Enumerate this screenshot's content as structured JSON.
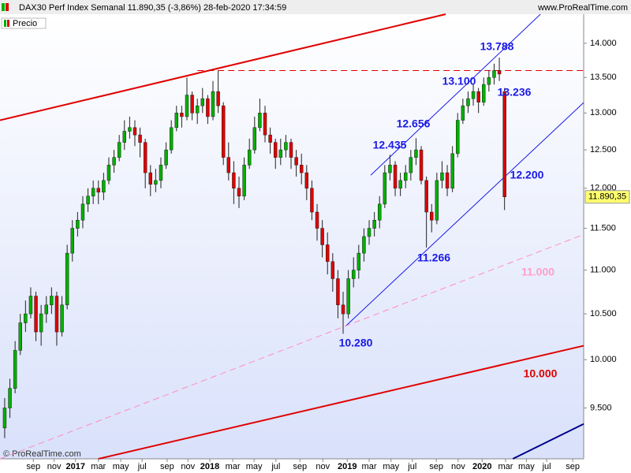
{
  "chart_data": {
    "type": "candlestick",
    "title": "DAX30 Perf Index Semanal 11.890,35 (-3,86%) 28-feb-2020 17:34:59",
    "legend": "Precio",
    "watermark": "www.ProRealTime.com",
    "copyright": "© ProRealTime.com",
    "last_label": "11.890,35",
    "log_scale": true,
    "up_color": "#00b000",
    "down_color": "#e00000",
    "ylim": [
      9000,
      14440
    ],
    "yticks": [
      {
        "value": 9500,
        "label": "9.500"
      },
      {
        "value": 10000,
        "label": "10.000"
      },
      {
        "value": 10500,
        "label": "10.500"
      },
      {
        "value": 11000,
        "label": "11.000"
      },
      {
        "value": 11500,
        "label": "11.500"
      },
      {
        "value": 12000,
        "label": "12.000"
      },
      {
        "value": 12500,
        "label": "12.500"
      },
      {
        "value": 13000,
        "label": "13.000"
      },
      {
        "value": 13500,
        "label": "13.500"
      },
      {
        "value": 14000,
        "label": "14.000"
      }
    ],
    "xlim": [
      -0.9,
      111.2
    ],
    "xticks": [
      {
        "value": 5.5,
        "label": "sep"
      },
      {
        "value": 9.5,
        "label": "nov"
      },
      {
        "value": 13.6,
        "label": "2017"
      },
      {
        "value": 18,
        "label": "mar"
      },
      {
        "value": 22.3,
        "label": "may"
      },
      {
        "value": 26.4,
        "label": "jul"
      },
      {
        "value": 31.2,
        "label": "sep"
      },
      {
        "value": 35.2,
        "label": "nov"
      },
      {
        "value": 39.4,
        "label": "2018"
      },
      {
        "value": 43.8,
        "label": "mar"
      },
      {
        "value": 47.9,
        "label": "may"
      },
      {
        "value": 52.1,
        "label": "jul"
      },
      {
        "value": 56.7,
        "label": "sep"
      },
      {
        "value": 61.1,
        "label": "nov"
      },
      {
        "value": 65.8,
        "label": "2019"
      },
      {
        "value": 70,
        "label": "mar"
      },
      {
        "value": 74.2,
        "label": "may"
      },
      {
        "value": 78.3,
        "label": "jul"
      },
      {
        "value": 82.9,
        "label": "sep"
      },
      {
        "value": 87.1,
        "label": "nov"
      },
      {
        "value": 91.7,
        "label": "2020"
      },
      {
        "value": 96.2,
        "label": "mar"
      },
      {
        "value": 100.2,
        "label": "may"
      },
      {
        "value": 104.1,
        "label": "jul"
      },
      {
        "value": 109.1,
        "label": "sep"
      }
    ],
    "candles": [
      [
        9300,
        9600,
        9200,
        9500
      ],
      [
        9500,
        9800,
        9400,
        9700
      ],
      [
        9700,
        10200,
        9650,
        10100
      ],
      [
        10100,
        10500,
        10050,
        10400
      ],
      [
        10400,
        10650,
        10300,
        10500
      ],
      [
        10500,
        10800,
        10450,
        10700
      ],
      [
        10700,
        10750,
        10200,
        10300
      ],
      [
        10300,
        10600,
        10150,
        10500
      ],
      [
        10500,
        10700,
        10400,
        10600
      ],
      [
        10600,
        10800,
        10500,
        10700
      ],
      [
        10700,
        10750,
        10150,
        10300
      ],
      [
        10300,
        10700,
        10250,
        10600
      ],
      [
        10600,
        11300,
        10550,
        11200
      ],
      [
        11200,
        11600,
        11100,
        11500
      ],
      [
        11500,
        11700,
        11400,
        11600
      ],
      [
        11600,
        11900,
        11500,
        11800
      ],
      [
        11800,
        12000,
        11700,
        11900
      ],
      [
        11900,
        12100,
        11800,
        12000
      ],
      [
        12000,
        12100,
        11800,
        11950
      ],
      [
        11950,
        12200,
        11850,
        12100
      ],
      [
        12100,
        12400,
        12050,
        12300
      ],
      [
        12300,
        12500,
        12200,
        12400
      ],
      [
        12400,
        12700,
        12350,
        12600
      ],
      [
        12600,
        12900,
        12500,
        12750
      ],
      [
        12750,
        12950,
        12650,
        12800
      ],
      [
        12800,
        12900,
        12550,
        12700
      ],
      [
        12700,
        12800,
        12400,
        12600
      ],
      [
        12600,
        12650,
        12000,
        12200
      ],
      [
        12200,
        12300,
        11900,
        12050
      ],
      [
        12050,
        12250,
        11950,
        12100
      ],
      [
        12100,
        12400,
        12000,
        12300
      ],
      [
        12300,
        12600,
        12250,
        12500
      ],
      [
        12500,
        12900,
        12450,
        12800
      ],
      [
        12800,
        13100,
        12750,
        13000
      ],
      [
        13000,
        13100,
        12800,
        12950
      ],
      [
        12950,
        13500,
        12900,
        13250
      ],
      [
        13250,
        13300,
        12900,
        13000
      ],
      [
        13000,
        13200,
        12850,
        13100
      ],
      [
        13100,
        13350,
        13000,
        13200
      ],
      [
        13200,
        13250,
        12850,
        12950
      ],
      [
        12950,
        13450,
        12900,
        13300
      ],
      [
        13300,
        13600,
        13000,
        13100
      ],
      [
        13100,
        13150,
        12300,
        12400
      ],
      [
        12400,
        12600,
        12100,
        12200
      ],
      [
        12200,
        12350,
        11800,
        12000
      ],
      [
        12000,
        12150,
        11750,
        11900
      ],
      [
        11900,
        12400,
        11850,
        12300
      ],
      [
        12300,
        12650,
        12250,
        12500
      ],
      [
        12500,
        12950,
        12450,
        12800
      ],
      [
        12800,
        13200,
        12750,
        13000
      ],
      [
        13000,
        13100,
        12600,
        12700
      ],
      [
        12700,
        12800,
        12450,
        12600
      ],
      [
        12600,
        12650,
        12250,
        12400
      ],
      [
        12400,
        12650,
        12300,
        12500
      ],
      [
        12500,
        12700,
        12400,
        12600
      ],
      [
        12600,
        12650,
        12250,
        12400
      ],
      [
        12400,
        12500,
        12150,
        12300
      ],
      [
        12300,
        12450,
        12050,
        12200
      ],
      [
        12200,
        12300,
        11850,
        12000
      ],
      [
        12000,
        12100,
        11600,
        11700
      ],
      [
        11700,
        11800,
        11350,
        11500
      ],
      [
        11500,
        11600,
        11150,
        11300
      ],
      [
        11300,
        11450,
        10950,
        11100
      ],
      [
        11100,
        11200,
        10750,
        10900
      ],
      [
        10900,
        11000,
        10450,
        10600
      ],
      [
        10600,
        10750,
        10280,
        10500
      ],
      [
        10500,
        11000,
        10450,
        10900
      ],
      [
        10900,
        11150,
        10800,
        11000
      ],
      [
        11000,
        11300,
        10900,
        11200
      ],
      [
        11200,
        11500,
        11100,
        11400
      ],
      [
        11400,
        11600,
        11300,
        11500
      ],
      [
        11500,
        11700,
        11400,
        11600
      ],
      [
        11600,
        11900,
        11500,
        11800
      ],
      [
        11800,
        12300,
        11750,
        12200
      ],
      [
        12200,
        12435,
        12100,
        12300
      ],
      [
        12300,
        12350,
        11900,
        12000
      ],
      [
        12000,
        12200,
        11900,
        12100
      ],
      [
        12100,
        12300,
        12000,
        12200
      ],
      [
        12200,
        12500,
        12100,
        12400
      ],
      [
        12400,
        12656,
        12300,
        12500
      ],
      [
        12500,
        12550,
        12050,
        12100
      ],
      [
        12100,
        12150,
        11266,
        11700
      ],
      [
        11700,
        11800,
        11450,
        11600
      ],
      [
        11600,
        12200,
        11550,
        12100
      ],
      [
        12100,
        12350,
        12000,
        12200
      ],
      [
        12200,
        12300,
        11900,
        12000
      ],
      [
        12000,
        12550,
        11950,
        12450
      ],
      [
        12450,
        13000,
        12400,
        12900
      ],
      [
        12900,
        13200,
        12850,
        13100
      ],
      [
        13100,
        13300,
        13000,
        13200
      ],
      [
        13200,
        13400,
        13100,
        13300
      ],
      [
        13300,
        13350,
        13000,
        13150
      ],
      [
        13150,
        13500,
        13100,
        13400
      ],
      [
        13400,
        13600,
        13300,
        13500
      ],
      [
        13500,
        13700,
        13400,
        13600
      ],
      [
        13600,
        13788,
        13450,
        13550
      ],
      [
        13300,
        13350,
        11725,
        11890.35
      ]
    ],
    "lines": [
      {
        "from": [
          -0.9,
          12900
        ],
        "to": [
          84.7,
          14440
        ],
        "color": "#e00000",
        "width": 2
      },
      {
        "from": [
          18,
          9000
        ],
        "to": [
          111.2,
          10150
        ],
        "color": "#e00000",
        "width": 2
      },
      {
        "from": [
          37,
          13600
        ],
        "to": [
          111.2,
          13600
        ],
        "color": "#e00000",
        "width": 1,
        "dashed": true
      },
      {
        "from": [
          70.3,
          12168
        ],
        "to": [
          102.9,
          14440
        ],
        "color": "#1a1ae6",
        "width": 1
      },
      {
        "from": [
          65.5,
          10364
        ],
        "to": [
          111.2,
          13145
        ],
        "color": "#1a1ae6",
        "width": 1
      },
      {
        "from": [
          -0.9,
          9000
        ],
        "to": [
          111.2,
          11424
        ],
        "color": "#ff8cc0",
        "width": 1,
        "dashed": true
      },
      {
        "from": [
          97.6,
          9000
        ],
        "to": [
          111.2,
          9340
        ],
        "color": "#00008b",
        "width": 2
      }
    ],
    "annotations": [
      {
        "text": "13.788",
        "color": "#1a1ae6"
      },
      {
        "text": "13.100",
        "color": "#1a1ae6"
      },
      {
        "text": "13.236",
        "color": "#1a1ae6"
      },
      {
        "text": "12.656",
        "color": "#1a1ae6"
      },
      {
        "text": "12.435",
        "color": "#1a1ae6"
      },
      {
        "text": "12.200",
        "color": "#1a1ae6"
      },
      {
        "text": "11.266",
        "color": "#1a1ae6"
      },
      {
        "text": "11.000",
        "color": "#ff9ec8"
      },
      {
        "text": "10.280",
        "color": "#1a1ae6"
      },
      {
        "text": "10.000",
        "color": "#e00000"
      }
    ]
  }
}
